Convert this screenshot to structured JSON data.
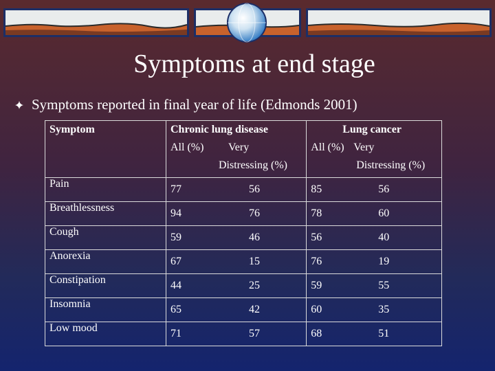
{
  "title": "Symptoms at end stage",
  "bullet": {
    "text": "Symptoms reported in final year of life (Edmonds 2001)",
    "icon": "diamond-bullet-icon"
  },
  "table": {
    "header": {
      "symptom": "Symptom",
      "chronic": {
        "name": "Chronic lung disease",
        "all": "All (%)",
        "very": "Very",
        "distressing": "Distressing (%)"
      },
      "lung": {
        "name": "Lung cancer",
        "all": "All (%)",
        "very": "Very",
        "distressing": "Distressing (%)"
      }
    },
    "rows": [
      {
        "symptom": "Pain",
        "chronic_all": "77",
        "chronic_very": "56",
        "lung_all": "85",
        "lung_very": "56"
      },
      {
        "symptom": "Breathlessness",
        "chronic_all": "94",
        "chronic_very": "76",
        "lung_all": "78",
        "lung_very": "60"
      },
      {
        "symptom": "Cough",
        "chronic_all": "59",
        "chronic_very": "46",
        "lung_all": "56",
        "lung_very": "40"
      },
      {
        "symptom": "Anorexia",
        "chronic_all": "67",
        "chronic_very": "15",
        "lung_all": "76",
        "lung_very": "19"
      },
      {
        "symptom": "Constipation",
        "chronic_all": "44",
        "chronic_very": "25",
        "lung_all": "59",
        "lung_very": "55"
      },
      {
        "symptom": "Insomnia",
        "chronic_all": "65",
        "chronic_very": "42",
        "lung_all": "60",
        "lung_very": "35"
      },
      {
        "symptom": "Low mood",
        "chronic_all": "71",
        "chronic_very": "57",
        "lung_all": "68",
        "lung_very": "51"
      }
    ]
  },
  "colors": {
    "text": "#ffffff",
    "grid": "#dcdcdc",
    "banner_sky": "#e9ecec",
    "banner_ground": "#c8622c"
  }
}
